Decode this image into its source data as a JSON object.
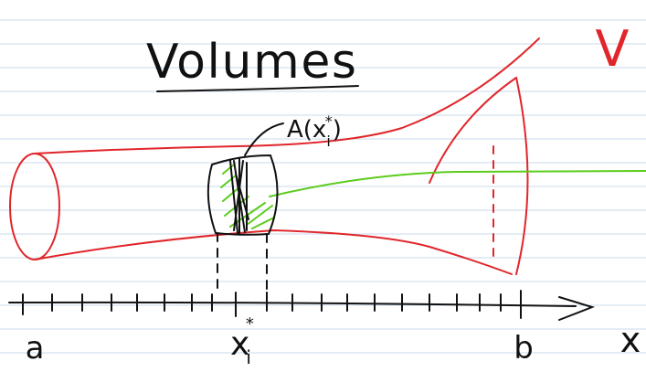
{
  "title": "Volumes",
  "annotation": "V",
  "slice_label": {
    "base": "A(x",
    "sub": "i",
    "sup": "*",
    "close": ")"
  },
  "axis": {
    "start": "a",
    "end": "b",
    "variable": "x",
    "point": {
      "base": "x",
      "sub": "i",
      "sup": "*"
    }
  }
}
